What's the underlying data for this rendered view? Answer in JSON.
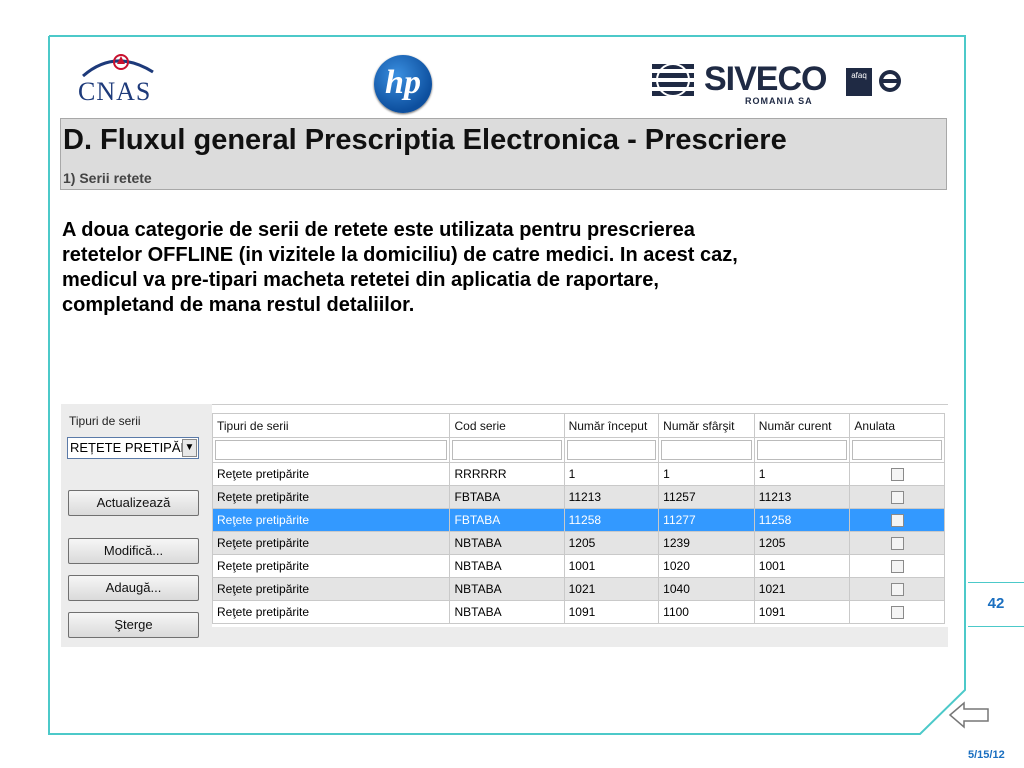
{
  "logos": {
    "cnas": "CNAS",
    "hp": "hp",
    "siveco": "SIVECO",
    "siveco_sub": "ROMANIA SA",
    "afaq": "afaq"
  },
  "slide": {
    "title": "D. Fluxul general Prescriptia Electronica - Prescriere",
    "subtitle": "1) Serii retete",
    "body_lines": [
      "A doua categorie de serii de retete este utilizata pentru prescrierea",
      "retetelor OFFLINE (in vizitele la domiciliu) de catre medici. In acest caz,",
      "medicul va pre-tipari macheta retetei  din aplicatia de raportare,",
      "completand de mana restul detaliilor."
    ],
    "page_number": "42",
    "date": "5/15/12"
  },
  "app": {
    "filter_label": "Tipuri de serii",
    "filter_value": "REȚETE PRETIPĂRI",
    "buttons": {
      "refresh": "Actualizează",
      "edit": "Modifică...",
      "add": "Adaugă...",
      "delete": "Şterge"
    },
    "columns": [
      "Tipuri de serii",
      "Cod serie",
      "Număr început",
      "Număr sfârşit",
      "Număr curent",
      "Anulata"
    ],
    "rows": [
      [
        "Reţete pretipărite",
        "RRRRRR",
        "1",
        "1",
        "1"
      ],
      [
        "Reţete pretipărite",
        "FBTABA",
        "11213",
        "11257",
        "11213"
      ],
      [
        "Reţete pretipărite",
        "FBTABA",
        "11258",
        "11277",
        "11258"
      ],
      [
        "Reţete pretipărite",
        "NBTABA",
        "1205",
        "1239",
        "1205"
      ],
      [
        "Reţete pretipărite",
        "NBTABA",
        "1001",
        "1020",
        "1001"
      ],
      [
        "Reţete pretipărite",
        "NBTABA",
        "1021",
        "1040",
        "1021"
      ],
      [
        "Reţete pretipărite",
        "NBTABA",
        "1091",
        "1100",
        "1091"
      ]
    ],
    "selected_row": 2
  },
  "colors": {
    "frame": "#4cc9c9",
    "selection": "#3399ff",
    "accent_text": "#1a6fc0"
  }
}
